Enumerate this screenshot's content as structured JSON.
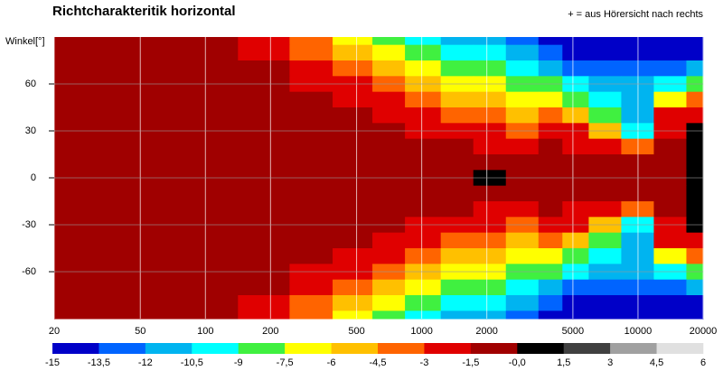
{
  "chart_data": {
    "type": "heatmap",
    "title": "Richtcharakteritik horizontal",
    "annotation": "+ = aus Hörersicht nach rechts",
    "y_label": "Winkel[°]",
    "xscale": "log",
    "xlim": [
      20,
      20000
    ],
    "xticks": [
      20,
      50,
      100,
      200,
      500,
      1000,
      2000,
      5000,
      10000,
      20000
    ],
    "ylim": [
      -90,
      90
    ],
    "yticks": [
      60,
      30,
      0,
      -30,
      -60
    ],
    "grid": true,
    "x": [
      20,
      50,
      100,
      200,
      300,
      500,
      700,
      1000,
      1500,
      2000,
      3000,
      4000,
      5000,
      7000,
      10000,
      14000,
      20000
    ],
    "y": [
      90,
      80,
      70,
      60,
      50,
      40,
      30,
      20,
      10,
      0,
      -10,
      -20,
      -30,
      -40,
      -50,
      -60,
      -70,
      -80,
      -90
    ],
    "z": [
      [
        -0.5,
        -0.8,
        -1.2,
        -2.5,
        -4,
        -6.5,
        -8,
        -10,
        -11,
        -12,
        -13,
        -14,
        -14.5,
        -14.5,
        -14.5,
        -14.5,
        -14.5
      ],
      [
        -0.5,
        -0.7,
        -1,
        -2,
        -3.2,
        -5,
        -6.5,
        -8,
        -9.5,
        -10.5,
        -12,
        -13,
        -14,
        -14,
        -14,
        -14,
        -14
      ],
      [
        -0.5,
        -0.7,
        -0.9,
        -1.5,
        -2.5,
        -3.5,
        -5,
        -6.5,
        -8,
        -9,
        -10,
        -12,
        -13,
        -13,
        -13,
        -13,
        -12
      ],
      [
        -0.5,
        -0.6,
        -0.8,
        -1.2,
        -1.8,
        -2.8,
        -3.5,
        -5,
        -6.5,
        -7.5,
        -8.5,
        -9,
        -10.5,
        -12,
        -12,
        -10,
        -8
      ],
      [
        -0.5,
        -0.6,
        -0.7,
        -1,
        -1.4,
        -2,
        -2.8,
        -3.6,
        -5,
        -6,
        -7,
        -6.5,
        -8.5,
        -10,
        -11,
        -7,
        -4
      ],
      [
        -0.5,
        -0.5,
        -0.6,
        -0.8,
        -1,
        -1.5,
        -2,
        -2.8,
        -3.5,
        -4.5,
        -5,
        -4,
        -5.5,
        -8,
        -11,
        -3,
        -2
      ],
      [
        -0.5,
        -0.5,
        -0.5,
        -0.7,
        -0.8,
        -1.1,
        -1.4,
        -1.8,
        -2.5,
        -3,
        -3.2,
        -2,
        -3,
        -5,
        -10,
        -2,
        1
      ],
      [
        -0.5,
        -0.5,
        -0.5,
        -0.6,
        -0.7,
        -0.8,
        -1,
        -1.2,
        -1.5,
        -1.8,
        -1.8,
        -1.5,
        -1.8,
        -2.5,
        -4,
        -1.5,
        0.5
      ],
      [
        -0.5,
        -0.5,
        -0.5,
        -0.5,
        -0.6,
        -0.6,
        -0.7,
        -0.8,
        -1,
        -1.2,
        -1.2,
        -1,
        -0.5,
        -1.2,
        -1.5,
        -1,
        0.5
      ],
      [
        -0.5,
        -0.5,
        -0.5,
        -0.5,
        -0.5,
        -0.5,
        -0.6,
        -0.7,
        -0.8,
        0.3,
        -0.8,
        -0.8,
        -1,
        -1,
        -1.2,
        -1,
        0.5
      ],
      [
        -0.5,
        -0.5,
        -0.5,
        -0.5,
        -0.6,
        -0.6,
        -0.7,
        -0.8,
        -1,
        -1.2,
        -1.2,
        -1,
        -0.5,
        -1.2,
        -1.5,
        -1,
        0.5
      ],
      [
        -0.5,
        -0.5,
        -0.5,
        -0.6,
        -0.7,
        -0.8,
        -1,
        -1.2,
        -1.5,
        -1.8,
        -1.8,
        -1.5,
        -1.8,
        -2.5,
        -4,
        -1.5,
        0.5
      ],
      [
        -0.5,
        -0.5,
        -0.5,
        -0.7,
        -0.8,
        -1.1,
        -1.4,
        -1.8,
        -2.5,
        -3,
        -3.2,
        -2,
        -3,
        -5,
        -10,
        -2,
        1
      ],
      [
        -0.5,
        -0.5,
        -0.6,
        -0.8,
        -1,
        -1.5,
        -2,
        -2.8,
        -3.5,
        -4.5,
        -5,
        -4,
        -5.5,
        -8,
        -11,
        -3,
        -2
      ],
      [
        -0.5,
        -0.6,
        -0.7,
        -1,
        -1.4,
        -2,
        -2.8,
        -3.6,
        -5,
        -6,
        -7,
        -6.5,
        -8.5,
        -10,
        -11,
        -7,
        -4
      ],
      [
        -0.5,
        -0.6,
        -0.8,
        -1.2,
        -1.8,
        -2.8,
        -3.5,
        -5,
        -6.5,
        -7.5,
        -8.5,
        -9,
        -10.5,
        -12,
        -12,
        -10,
        -8
      ],
      [
        -0.5,
        -0.7,
        -0.9,
        -1.5,
        -2.5,
        -3.5,
        -5,
        -6.5,
        -8,
        -9,
        -10,
        -12,
        -13,
        -13,
        -13,
        -13,
        -12
      ],
      [
        -0.5,
        -0.7,
        -1,
        -2,
        -3.2,
        -5,
        -6.5,
        -8,
        -9.5,
        -10.5,
        -12,
        -13,
        -14,
        -14,
        -14,
        -14,
        -14
      ],
      [
        -0.5,
        -0.8,
        -1.2,
        -2.5,
        -4,
        -6.5,
        -8,
        -10,
        -11,
        -12,
        -13,
        -14,
        -14.5,
        -14.5,
        -14.5,
        -14.5,
        -14.5
      ]
    ],
    "colorbar": {
      "levels": [
        -15,
        {
          "value": -13.5,
          "label": "-13,5"
        },
        -12,
        {
          "value": -10.5,
          "label": "-10,5"
        },
        -9,
        {
          "value": -7.5,
          "label": "-7,5"
        },
        -6,
        {
          "value": -4.5,
          "label": "-4,5"
        },
        -3,
        {
          "value": -1.5,
          "label": "-1,5"
        },
        {
          "value": 0,
          "label": "-0,0"
        },
        {
          "value": 1.5,
          "label": "1,5"
        },
        3,
        {
          "value": 4.5,
          "label": "4,5"
        },
        6
      ],
      "colors": [
        "#0000c8",
        "#0064ff",
        "#00b4f0",
        "#00ffff",
        "#40f040",
        "#ffff00",
        "#ffc000",
        "#ff6400",
        "#e00000",
        "#a00000",
        "#000000",
        "#404040",
        "#a0a0a0",
        "#e0e0e0"
      ]
    }
  }
}
